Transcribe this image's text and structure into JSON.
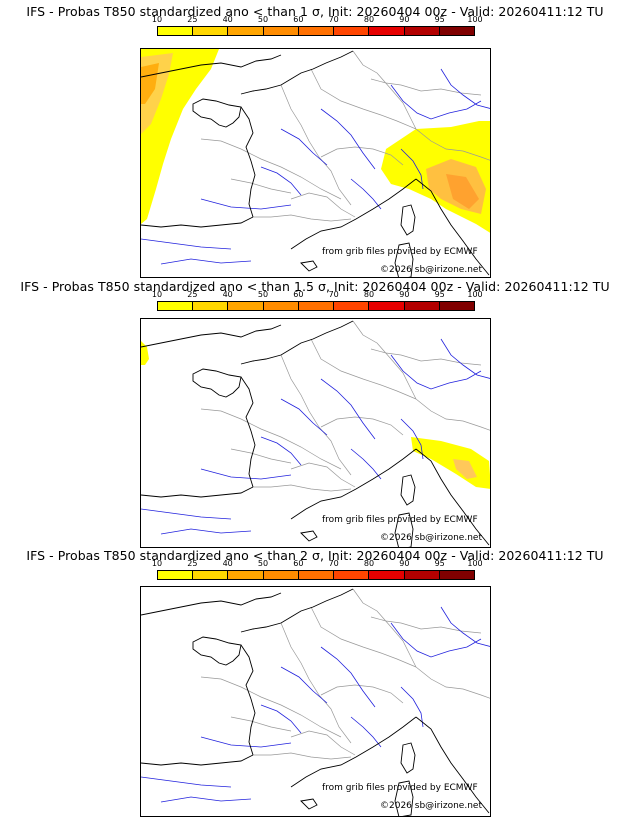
{
  "colorbar": {
    "ticks": [
      "10",
      "25",
      "40",
      "50",
      "60",
      "70",
      "80",
      "90",
      "95",
      "100"
    ],
    "colors": [
      "#ffff00",
      "#ffd700",
      "#ffa500",
      "#ff8c00",
      "#ff7000",
      "#ff4500",
      "#e60000",
      "#b30000",
      "#800000"
    ]
  },
  "panels": [
    {
      "title": "IFS - Probas T850  standardized ano < than 1 σ, Init: 20260404 00z - Valid: 20260411:12 TU",
      "credit_source": "from grib files provided by ECMWF",
      "credit_copyright": "©2026 sb@irizone.net"
    },
    {
      "title": "IFS - Probas T850  standardized ano < than 1.5 σ, Init: 20260404 00z - Valid: 20260411:12 TU",
      "credit_source": "from grib files provided by ECMWF",
      "credit_copyright": "©2026 sb@irizone.net"
    },
    {
      "title": "IFS - Probas T850  standardized ano < than 2 σ, Init: 20260404 00z - Valid: 20260411:12 TU",
      "credit_source": "from grib files provided by ECMWF",
      "credit_copyright": "©2026 sb@irizone.net"
    }
  ],
  "style": {
    "coast_color": "#000000",
    "border_color": "#999999",
    "river_color": "#2222dd"
  }
}
